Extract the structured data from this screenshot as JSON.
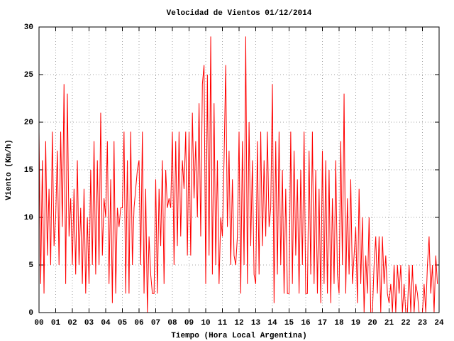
{
  "chart_data": {
    "type": "line",
    "title": "Velocidad de Vientos 01/12/2014",
    "x_label": "Tiempo (Hora Local Argentina)",
    "y_label": "Viento (Km/h)",
    "xlim": [
      0,
      24
    ],
    "ylim": [
      0,
      30
    ],
    "xticks": [
      {
        "value": 0,
        "label": "00"
      },
      {
        "value": 1,
        "label": "01"
      },
      {
        "value": 2,
        "label": "02"
      },
      {
        "value": 3,
        "label": "03"
      },
      {
        "value": 4,
        "label": "04"
      },
      {
        "value": 5,
        "label": "05"
      },
      {
        "value": 6,
        "label": "06"
      },
      {
        "value": 7,
        "label": "07"
      },
      {
        "value": 8,
        "label": "08"
      },
      {
        "value": 9,
        "label": "09"
      },
      10,
      11,
      12,
      13,
      14,
      15,
      16,
      17,
      18,
      19,
      20,
      21,
      22,
      23,
      24
    ],
    "yticks": [
      0,
      5,
      10,
      15,
      20,
      25,
      30
    ],
    "grid": true,
    "series": [
      {
        "name": "Viento",
        "color": "#ff0000",
        "x": [
          0,
          0.1,
          0.2,
          0.3,
          0.4,
          0.5,
          0.6,
          0.7,
          0.8,
          0.9,
          1,
          1.1,
          1.2,
          1.3,
          1.4,
          1.5,
          1.6,
          1.7,
          1.8,
          1.9,
          2,
          2.1,
          2.2,
          2.3,
          2.4,
          2.5,
          2.6,
          2.7,
          2.8,
          2.9,
          3,
          3.1,
          3.2,
          3.3,
          3.4,
          3.5,
          3.6,
          3.7,
          3.8,
          3.9,
          4,
          4.1,
          4.2,
          4.3,
          4.4,
          4.5,
          4.6,
          4.7,
          4.8,
          4.9,
          5,
          5.1,
          5.2,
          5.3,
          5.4,
          5.5,
          5.6,
          5.7,
          5.8,
          5.9,
          6,
          6.1,
          6.2,
          6.3,
          6.4,
          6.5,
          6.6,
          6.7,
          6.8,
          6.9,
          7,
          7.1,
          7.2,
          7.3,
          7.4,
          7.5,
          7.6,
          7.7,
          7.8,
          7.9,
          8,
          8.1,
          8.2,
          8.3,
          8.4,
          8.5,
          8.6,
          8.7,
          8.8,
          8.9,
          9,
          9.1,
          9.2,
          9.3,
          9.4,
          9.5,
          9.6,
          9.7,
          9.8,
          9.9,
          10,
          10.1,
          10.2,
          10.3,
          10.4,
          10.5,
          10.6,
          10.7,
          10.8,
          10.9,
          11,
          11.1,
          11.2,
          11.3,
          11.4,
          11.5,
          11.6,
          11.7,
          11.8,
          11.9,
          12,
          12.1,
          12.2,
          12.3,
          12.4,
          12.5,
          12.6,
          12.7,
          12.8,
          12.9,
          13,
          13.1,
          13.2,
          13.3,
          13.4,
          13.5,
          13.6,
          13.7,
          13.8,
          13.9,
          14,
          14.1,
          14.2,
          14.3,
          14.4,
          14.5,
          14.6,
          14.7,
          14.8,
          14.9,
          15,
          15.1,
          15.2,
          15.3,
          15.4,
          15.5,
          15.6,
          15.7,
          15.8,
          15.9,
          16,
          16.1,
          16.2,
          16.3,
          16.4,
          16.5,
          16.6,
          16.7,
          16.8,
          16.9,
          17,
          17.1,
          17.2,
          17.3,
          17.4,
          17.5,
          17.6,
          17.7,
          17.8,
          17.9,
          18,
          18.1,
          18.2,
          18.3,
          18.4,
          18.5,
          18.6,
          18.7,
          18.8,
          18.9,
          19,
          19.1,
          19.2,
          19.3,
          19.4,
          19.5,
          19.6,
          19.7,
          19.8,
          19.9,
          20,
          20.1,
          20.2,
          20.3,
          20.4,
          20.5,
          20.6,
          20.7,
          20.8,
          20.9,
          21,
          21.1,
          21.2,
          21.3,
          21.4,
          21.5,
          21.6,
          21.7,
          21.8,
          21.9,
          22,
          22.1,
          22.2,
          22.3,
          22.4,
          22.5,
          22.6,
          22.7,
          22.8,
          22.9,
          23,
          23.1,
          23.2,
          23.3,
          23.4,
          23.5,
          23.6,
          23.7,
          23.8,
          23.9
        ],
        "values": [
          19,
          3,
          16,
          2,
          18,
          6,
          13,
          5,
          19,
          7,
          10,
          17,
          5,
          19,
          9,
          24,
          3,
          23,
          8,
          12,
          5,
          13,
          4,
          16,
          5,
          11,
          3,
          13,
          2,
          10,
          3,
          15,
          5,
          18,
          4,
          16,
          5,
          21,
          6,
          12,
          10,
          18,
          3,
          14,
          1,
          18,
          2,
          11,
          9,
          11,
          11,
          19,
          2,
          16,
          2,
          19,
          5,
          11,
          13,
          15,
          16,
          5,
          19,
          2,
          13,
          0,
          8,
          4,
          2,
          2,
          14,
          2,
          13,
          7,
          16,
          3,
          15,
          11,
          12,
          11,
          19,
          5,
          18,
          7,
          19,
          8,
          16,
          13,
          19,
          6,
          19,
          6,
          21,
          12,
          18,
          10,
          22,
          8,
          24,
          26,
          3,
          25,
          6,
          29,
          4,
          22,
          5,
          16,
          3,
          10,
          8,
          16,
          26,
          9,
          17,
          5,
          14,
          6,
          5,
          8,
          19,
          2,
          18,
          5,
          29,
          3,
          20,
          7,
          16,
          4,
          3,
          18,
          4,
          19,
          7,
          16,
          8,
          19,
          9,
          11,
          24,
          1,
          18,
          4,
          19,
          5,
          15,
          2,
          13,
          2,
          2,
          19,
          3,
          17,
          6,
          14,
          2,
          15,
          5,
          19,
          2,
          2,
          17,
          4,
          19,
          3,
          15,
          2,
          13,
          1,
          17,
          3,
          16,
          2,
          15,
          1,
          12,
          3,
          16,
          4,
          2,
          18,
          5,
          23,
          2,
          12,
          4,
          14,
          3,
          6,
          9,
          1,
          13,
          3,
          10,
          0,
          6,
          2,
          10,
          0,
          0,
          5,
          8,
          2,
          8,
          0,
          8,
          3,
          6,
          2,
          1,
          3,
          0,
          5,
          0,
          5,
          2,
          5,
          0,
          3,
          0,
          0,
          5,
          0,
          5,
          0,
          3,
          2,
          0,
          0,
          0,
          3,
          0,
          5,
          8,
          2,
          5,
          0,
          6,
          3
        ]
      }
    ]
  }
}
